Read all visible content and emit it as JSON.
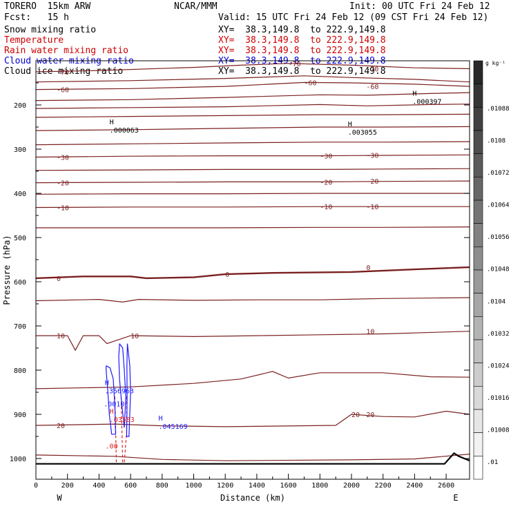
{
  "header": {
    "model": "TORERO  15km ARW",
    "forecast": "Fcst:   15 h",
    "center": "NCAR/MMM",
    "init": "Init: 00 UTC Fri 24 Feb 12",
    "valid": "Valid: 15 UTC Fri 24 Feb 12 (09 CST Fri 24 Feb 12)"
  },
  "fields": [
    {
      "label": "Snow mixing ratio",
      "xy": "XY=  38.3,149.8  to 222.9,149.8",
      "color": "#000000"
    },
    {
      "label": "Temperature",
      "xy": "XY=  38.3,149.8  to 222.9,149.8",
      "color": "#cc0000"
    },
    {
      "label": "Rain water mixing ratio",
      "xy": "XY=  38.3,149.8  to 222.9,149.8",
      "color": "#cc0000"
    },
    {
      "label": "Cloud water mixing ratio",
      "xy": "XY=  38.3,149.8  to 222.9,149.8",
      "color": "#0000cc"
    },
    {
      "label": "Cloud ice mixing ratio",
      "xy": "XY=  38.3,149.8  to 222.9,149.8",
      "color": "#000000"
    }
  ],
  "colors": {
    "temperature_contour": "#7a1f1f",
    "cloud_water_contour": "#1a1aff",
    "rain_water_contour": "#e02020",
    "terrain": "#000000"
  },
  "chart_data": {
    "type": "cross-section",
    "xlabel": "Distance (km)",
    "ylabel": "Pressure (hPa)",
    "xlim": [
      0,
      2750
    ],
    "ylim": [
      1050,
      100
    ],
    "x_ticks": [
      0,
      100,
      200,
      300,
      400,
      500,
      600,
      700,
      800,
      900,
      1000,
      1100,
      1200,
      1300,
      1400,
      1500,
      1600,
      1700,
      1800,
      1900,
      2000,
      2100,
      2200,
      2300,
      2400,
      2500,
      2600
    ],
    "x_tick_labels": [
      "0",
      "200",
      "400",
      "600",
      "800",
      "1000",
      "1200",
      "1400",
      "1600",
      "1800",
      "2000",
      "2200",
      "2400",
      "2600"
    ],
    "y_tick_labels": [
      "200",
      "300",
      "400",
      "500",
      "600",
      "700",
      "800",
      "900",
      "1000"
    ],
    "left_end": "W",
    "right_end": "E",
    "temperature_contours": [
      {
        "value": -70,
        "label": "-70",
        "points": [
          [
            0,
            125
          ],
          [
            400,
            122
          ],
          [
            1000,
            115
          ],
          [
            1300,
            110
          ],
          [
            1600,
            106
          ],
          [
            2000,
            110
          ],
          [
            2400,
            116
          ],
          [
            2750,
            118
          ]
        ]
      },
      {
        "value": -65,
        "label": "",
        "points": [
          [
            0,
            148
          ],
          [
            600,
            145
          ],
          [
            1200,
            140
          ],
          [
            1700,
            134
          ],
          [
            2000,
            138
          ],
          [
            2400,
            142
          ],
          [
            2750,
            148
          ]
        ]
      },
      {
        "value": -60,
        "label": "-60",
        "points": [
          [
            0,
            165
          ],
          [
            600,
            163
          ],
          [
            1200,
            158
          ],
          [
            1700,
            149
          ],
          [
            2000,
            150
          ],
          [
            2400,
            153
          ],
          [
            2750,
            158
          ]
        ]
      },
      {
        "value": -55,
        "label": "",
        "points": [
          [
            0,
            190
          ],
          [
            600,
            188
          ],
          [
            1200,
            183
          ],
          [
            1800,
            177
          ],
          [
            2100,
            178
          ],
          [
            2500,
            174
          ],
          [
            2750,
            172
          ]
        ]
      },
      {
        "value": -50,
        "label": "",
        "points": [
          [
            0,
            208
          ],
          [
            600,
            206
          ],
          [
            1200,
            204
          ],
          [
            1800,
            199
          ],
          [
            2100,
            202
          ],
          [
            2500,
            199
          ],
          [
            2750,
            198
          ]
        ]
      },
      {
        "value": -45,
        "label": "",
        "points": [
          [
            0,
            228
          ],
          [
            600,
            226
          ],
          [
            1200,
            224
          ],
          [
            1800,
            222
          ],
          [
            2200,
            222
          ],
          [
            2750,
            221
          ]
        ]
      },
      {
        "value": -40,
        "label": "",
        "points": [
          [
            0,
            258
          ],
          [
            600,
            256
          ],
          [
            1200,
            253
          ],
          [
            1800,
            250
          ],
          [
            2200,
            250
          ],
          [
            2750,
            249
          ]
        ]
      },
      {
        "value": -35,
        "label": "",
        "points": [
          [
            0,
            290
          ],
          [
            600,
            288
          ],
          [
            1200,
            286
          ],
          [
            1800,
            284
          ],
          [
            2200,
            284
          ],
          [
            2750,
            283
          ]
        ]
      },
      {
        "value": -30,
        "label": "-30",
        "points": [
          [
            0,
            318
          ],
          [
            600,
            316
          ],
          [
            1200,
            315
          ],
          [
            1800,
            315
          ],
          [
            2200,
            314
          ],
          [
            2750,
            313
          ]
        ]
      },
      {
        "value": -25,
        "label": "",
        "points": [
          [
            0,
            348
          ],
          [
            600,
            347
          ],
          [
            1200,
            346
          ],
          [
            1800,
            346
          ],
          [
            2200,
            345
          ],
          [
            2750,
            344
          ]
        ]
      },
      {
        "value": -20,
        "label": "-20",
        "points": [
          [
            0,
            376
          ],
          [
            600,
            375
          ],
          [
            1200,
            374
          ],
          [
            1800,
            374
          ],
          [
            2200,
            373
          ],
          [
            2750,
            372
          ]
        ]
      },
      {
        "value": -15,
        "label": "",
        "points": [
          [
            0,
            402
          ],
          [
            600,
            401
          ],
          [
            1200,
            401
          ],
          [
            1800,
            400
          ],
          [
            2200,
            400
          ],
          [
            2750,
            400
          ]
        ]
      },
      {
        "value": -10,
        "label": "-10",
        "points": [
          [
            0,
            432
          ],
          [
            600,
            431
          ],
          [
            1200,
            431
          ],
          [
            1800,
            430
          ],
          [
            2200,
            430
          ],
          [
            2750,
            430
          ]
        ]
      },
      {
        "value": -5,
        "label": "",
        "points": [
          [
            0,
            478
          ],
          [
            600,
            478
          ],
          [
            1200,
            478
          ],
          [
            1800,
            477
          ],
          [
            2200,
            477
          ],
          [
            2750,
            476
          ]
        ]
      },
      {
        "value": 0,
        "label": "0",
        "points": [
          [
            0,
            592
          ],
          [
            300,
            588
          ],
          [
            600,
            588
          ],
          [
            700,
            592
          ],
          [
            1000,
            590
          ],
          [
            1200,
            583
          ],
          [
            1500,
            580
          ],
          [
            2000,
            578
          ],
          [
            2400,
            572
          ],
          [
            2750,
            567
          ]
        ]
      },
      {
        "value": 5,
        "label": "",
        "points": [
          [
            0,
            643
          ],
          [
            400,
            640
          ],
          [
            550,
            646
          ],
          [
            650,
            640
          ],
          [
            1000,
            642
          ],
          [
            1400,
            641
          ],
          [
            1800,
            641
          ],
          [
            2200,
            638
          ],
          [
            2750,
            636
          ]
        ]
      },
      {
        "value": 10,
        "label": "10",
        "points": [
          [
            0,
            722
          ],
          [
            200,
            722
          ],
          [
            250,
            755
          ],
          [
            300,
            722
          ],
          [
            400,
            722
          ],
          [
            450,
            740
          ],
          [
            600,
            722
          ],
          [
            1000,
            724
          ],
          [
            1400,
            722
          ],
          [
            1800,
            720
          ],
          [
            2200,
            718
          ],
          [
            2750,
            712
          ]
        ]
      },
      {
        "value": 15,
        "label": "",
        "points": [
          [
            0,
            842
          ],
          [
            600,
            838
          ],
          [
            1000,
            830
          ],
          [
            1300,
            820
          ],
          [
            1500,
            803
          ],
          [
            1600,
            818
          ],
          [
            1800,
            806
          ],
          [
            2200,
            806
          ],
          [
            2500,
            815
          ],
          [
            2750,
            816
          ]
        ]
      },
      {
        "value": 20,
        "label": "20",
        "points": [
          [
            0,
            925
          ],
          [
            500,
            922
          ],
          [
            800,
            926
          ],
          [
            1200,
            928
          ],
          [
            1900,
            925
          ],
          [
            2000,
            900
          ],
          [
            2200,
            905
          ],
          [
            2400,
            906
          ],
          [
            2600,
            893
          ],
          [
            2750,
            900
          ]
        ]
      },
      {
        "value": 25,
        "label": "",
        "points": [
          [
            0,
            992
          ],
          [
            500,
            995
          ],
          [
            800,
            1002
          ],
          [
            1200,
            1005
          ],
          [
            2000,
            1003
          ],
          [
            2400,
            1001
          ],
          [
            2750,
            990
          ]
        ]
      }
    ],
    "cloud_water_contours": [
      {
        "points": [
          [
            530,
            740
          ],
          [
            550,
            750
          ],
          [
            560,
            800
          ],
          [
            570,
            860
          ],
          [
            560,
            930
          ],
          [
            545,
            880
          ],
          [
            530,
            820
          ],
          [
            525,
            770
          ],
          [
            530,
            740
          ]
        ]
      },
      {
        "points": [
          [
            445,
            790
          ],
          [
            470,
            795
          ],
          [
            490,
            820
          ],
          [
            500,
            880
          ],
          [
            505,
            945
          ],
          [
            480,
            945
          ],
          [
            465,
            900
          ],
          [
            455,
            845
          ],
          [
            445,
            800
          ],
          [
            445,
            790
          ]
        ]
      },
      {
        "points": [
          [
            580,
            740
          ],
          [
            595,
            790
          ],
          [
            600,
            850
          ],
          [
            590,
            950
          ],
          [
            575,
            950
          ],
          [
            578,
            860
          ],
          [
            577,
            790
          ],
          [
            580,
            740
          ]
        ]
      }
    ],
    "rain_water_contours": [
      {
        "points": [
          [
            500,
            860
          ],
          [
            505,
            930
          ],
          [
            510,
            1010
          ]
        ]
      },
      {
        "points": [
          [
            540,
            860
          ],
          [
            545,
            930
          ],
          [
            550,
            1010
          ]
        ]
      },
      {
        "points": [
          [
            575,
            860
          ],
          [
            575,
            940
          ],
          [
            560,
            1010
          ]
        ]
      }
    ],
    "terrain": [
      [
        0,
        1012
      ],
      [
        2400,
        1012
      ],
      [
        2590,
        1012
      ],
      [
        2650,
        988
      ],
      [
        2680,
        995
      ],
      [
        2750,
        1005
      ]
    ],
    "extrema": [
      {
        "sym": "H",
        "value": ".000063",
        "x": 480,
        "p": 250,
        "color": "#000000"
      },
      {
        "sym": "H",
        "value": ".003055",
        "x": 1990,
        "p": 255,
        "color": "#000000"
      },
      {
        "sym": "H",
        "value": ".000397",
        "x": 2400,
        "p": 185,
        "color": "#000000"
      },
      {
        "sym": "H",
        "value": ".356963",
        "x": 450,
        "p": 840,
        "color": "#1a1aff"
      },
      {
        "sym": "H",
        "value": ".045169",
        "x": 790,
        "p": 920,
        "color": "#1a1aff"
      },
      {
        "sym": "H",
        "value": ".03583",
        "x": 480,
        "p": 905,
        "color": "#e02020"
      }
    ],
    "extra_labels": [
      {
        "text": ".0010",
        "x": 430,
        "p": 882,
        "color": "#1a1aff"
      },
      {
        "text": ".00",
        "x": 440,
        "p": 977,
        "color": "#e02020"
      }
    ],
    "colorbar": {
      "unit": "g kg⁻¹",
      "labels": [
        ".01088",
        ".0108",
        ".01072",
        ".01064",
        ".01056",
        ".01048",
        ".0104",
        ".01032",
        ".01024",
        ".01016",
        ".01008",
        ".01"
      ]
    }
  }
}
